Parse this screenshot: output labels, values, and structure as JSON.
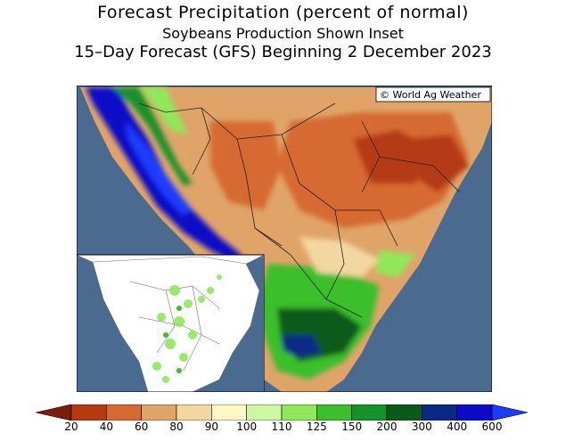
{
  "title": "Forecast Precipitation (percent of normal)",
  "subtitle": "Soybeans Production Shown Inset",
  "forecast_line": "15–Day Forecast (GFS) Beginning 2 December 2023",
  "credit": "© World Ag Weather",
  "colorbar": {
    "labels": [
      "20",
      "40",
      "60",
      "80",
      "90",
      "100",
      "110",
      "125",
      "150",
      "200",
      "300",
      "400",
      "600"
    ],
    "colors": [
      "#7a1d0a",
      "#b53a12",
      "#d66a32",
      "#e0a468",
      "#f2d8a0",
      "#fdf7c8",
      "#cdf7a0",
      "#8fe85a",
      "#3bbf2c",
      "#15912a",
      "#0b5a1a",
      "#0a2a86",
      "#0b0bc8",
      "#1a3cff"
    ]
  },
  "colors": {
    "ocean": "#4a6a8f",
    "border": "#222222"
  }
}
